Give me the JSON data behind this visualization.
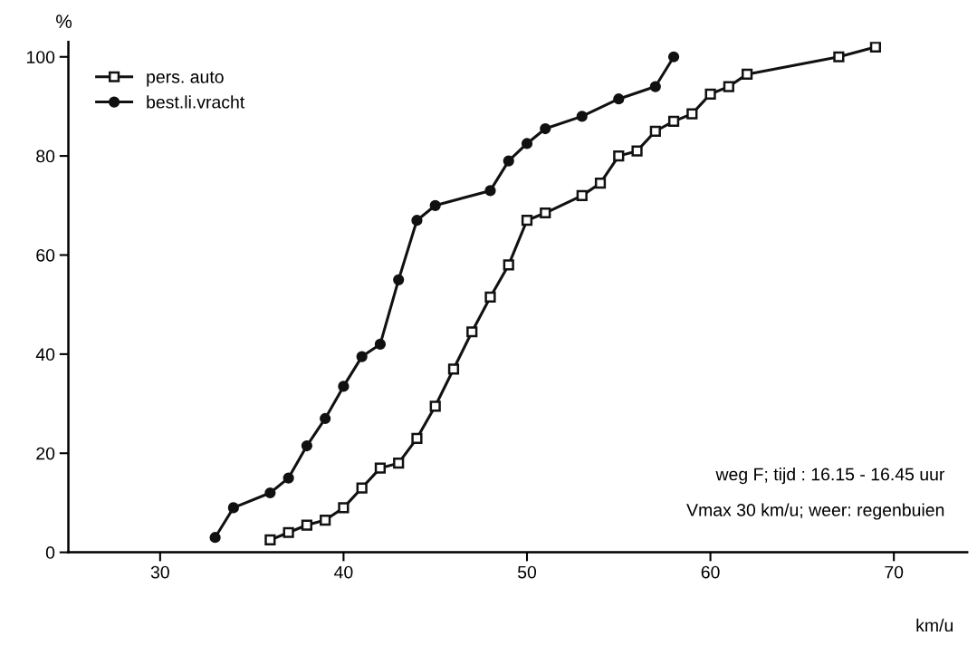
{
  "chart_data": {
    "type": "line",
    "ylabel": "%",
    "xlabel": "km/u",
    "xlim": [
      25,
      74
    ],
    "ylim": [
      0,
      103
    ],
    "xticks": [
      30,
      40,
      50,
      60,
      70
    ],
    "yticks": [
      0,
      20,
      40,
      60,
      80,
      100
    ],
    "grid": false,
    "legend": "top left",
    "line_style": "solid",
    "series": [
      {
        "name": "pers. auto",
        "color": "#111111",
        "marker": "square",
        "x": [
          36,
          37,
          38,
          39,
          40,
          41,
          42,
          43,
          44,
          45,
          46,
          47,
          48,
          49,
          50,
          51,
          53,
          54,
          55,
          56,
          57,
          58,
          59,
          60,
          61,
          62,
          67,
          69
        ],
        "values": [
          2.5,
          4,
          5.5,
          6.5,
          9,
          13,
          17,
          18,
          23,
          29.5,
          37,
          44.5,
          51.5,
          58,
          67,
          68.5,
          72,
          74.5,
          80,
          81,
          85,
          87,
          88.5,
          92.5,
          94,
          96.5,
          100,
          102
        ]
      },
      {
        "name": "best.li.vracht",
        "color": "#111111",
        "marker": "circle",
        "x": [
          33,
          34,
          36,
          37,
          38,
          39,
          40,
          41,
          42,
          43,
          44,
          45,
          48,
          49,
          50,
          51,
          53,
          55,
          57,
          58
        ],
        "values": [
          3,
          9,
          12,
          15,
          21.5,
          27,
          33.5,
          39.5,
          42,
          55,
          67,
          70,
          73,
          79,
          82.5,
          85.5,
          88,
          91.5,
          94,
          100
        ]
      }
    ],
    "annotations": [
      "weg F; tijd : 16.15 - 16.45 uur",
      "Vmax 30 km/u; weer: regenbuien"
    ]
  }
}
